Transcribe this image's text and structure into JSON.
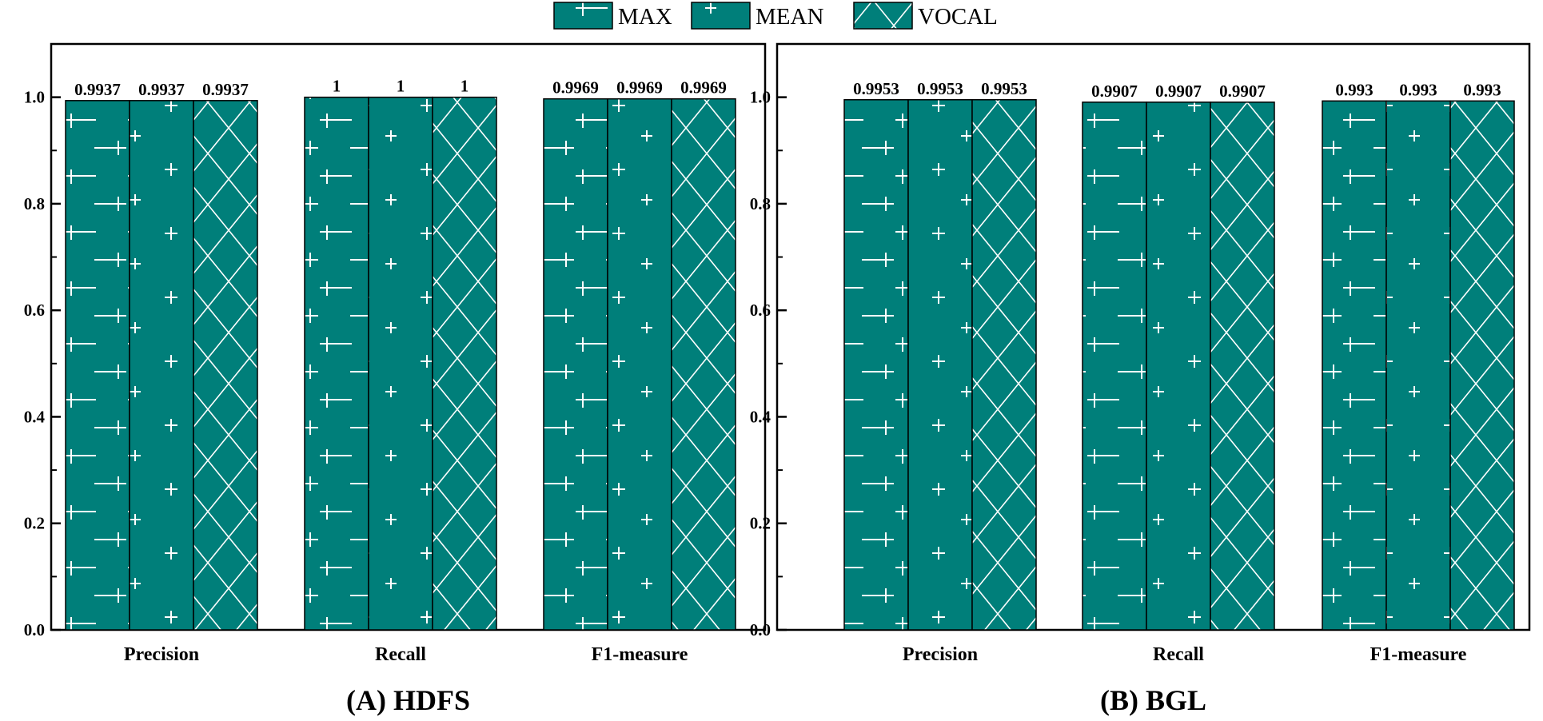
{
  "chart_data": [
    {
      "type": "bar",
      "title": "(A) HDFS",
      "categories": [
        "Precision",
        "Recall",
        "F1-measure"
      ],
      "series": [
        {
          "name": "MAX",
          "values": [
            0.9937,
            1,
            0.9969
          ],
          "labels": [
            "0.9937",
            "1",
            "0.9969"
          ]
        },
        {
          "name": "MEAN",
          "values": [
            0.9937,
            1,
            0.9969
          ],
          "labels": [
            "0.9937",
            "1",
            "0.9969"
          ]
        },
        {
          "name": "VOCAL",
          "values": [
            0.9937,
            1,
            0.9969
          ],
          "labels": [
            "0.9937",
            "1",
            "0.9969"
          ]
        }
      ],
      "ylim": [
        0,
        1.1
      ],
      "yticks": [
        "0.0",
        "0.2",
        "0.4",
        "0.6",
        "0.8",
        "1.0"
      ],
      "xlabel": "",
      "ylabel": ""
    },
    {
      "type": "bar",
      "title": "(B) BGL",
      "categories": [
        "Precision",
        "Recall",
        "F1-measure"
      ],
      "series": [
        {
          "name": "MAX",
          "values": [
            0.9953,
            0.9907,
            0.993
          ],
          "labels": [
            "0.9953",
            "0.9907",
            "0.993"
          ]
        },
        {
          "name": "MEAN",
          "values": [
            0.9953,
            0.9907,
            0.993
          ],
          "labels": [
            "0.9953",
            "0.9907",
            "0.993"
          ]
        },
        {
          "name": "VOCAL",
          "values": [
            0.9953,
            0.9907,
            0.993
          ],
          "labels": [
            "0.9953",
            "0.9907",
            "0.993"
          ]
        }
      ],
      "ylim": [
        0,
        1.1
      ],
      "yticks": [
        "0.0",
        "0.2",
        "0.4",
        "0.6",
        "0.8",
        "1.0"
      ],
      "xlabel": "",
      "ylabel": ""
    }
  ],
  "legend": {
    "position": "top-center",
    "items": [
      {
        "name": "MAX",
        "pattern": "horizontal-line-plus"
      },
      {
        "name": "MEAN",
        "pattern": "small-plus"
      },
      {
        "name": "VOCAL",
        "pattern": "diamond-crosshatch"
      }
    ]
  },
  "colors": {
    "bar_fill": "#007f7a",
    "pattern": "#ffffff",
    "outline": "#000000"
  }
}
